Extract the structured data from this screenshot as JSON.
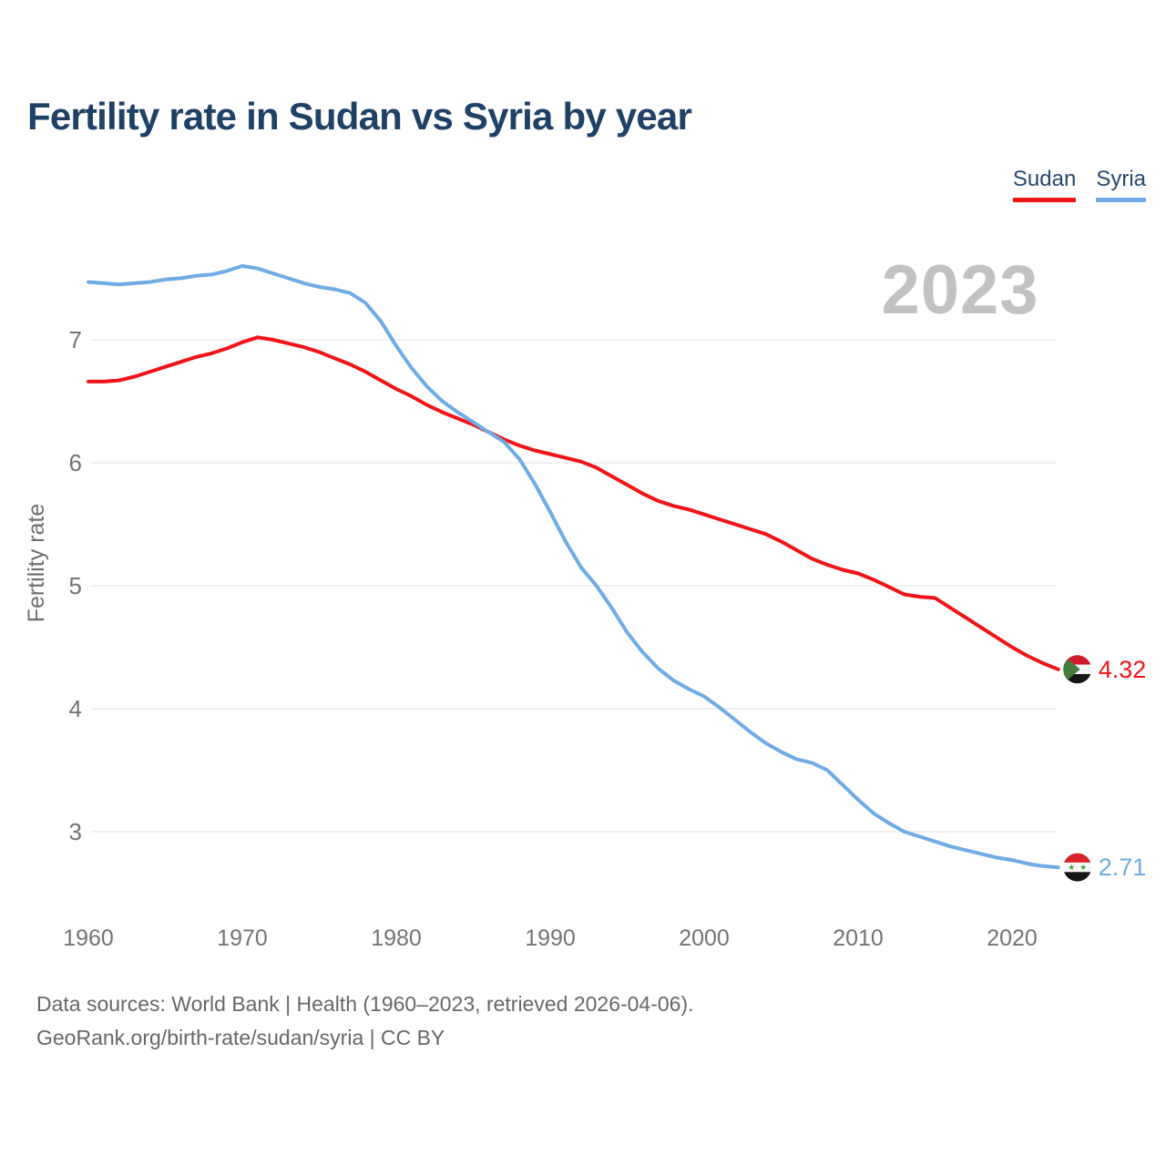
{
  "header": {
    "title": "Fertility rate in Sudan vs Syria by year"
  },
  "chart_data": {
    "type": "line",
    "title": "Fertility rate in Sudan vs Syria by year",
    "xlabel": "",
    "ylabel": "Fertility rate",
    "grid": "horizontal",
    "legend_position": "top-right",
    "xlim": [
      1960,
      2023
    ],
    "ylim": [
      2.4,
      7.8
    ],
    "xticks": [
      1960,
      1970,
      1980,
      1990,
      2000,
      2010,
      2020
    ],
    "yticks": [
      7,
      6,
      5,
      4,
      3
    ],
    "year_watermark": "2023",
    "x": [
      1960,
      1961,
      1962,
      1963,
      1964,
      1965,
      1966,
      1967,
      1968,
      1969,
      1970,
      1971,
      1972,
      1973,
      1974,
      1975,
      1976,
      1977,
      1978,
      1979,
      1980,
      1981,
      1982,
      1983,
      1984,
      1985,
      1986,
      1987,
      1988,
      1989,
      1990,
      1991,
      1992,
      1993,
      1994,
      1995,
      1996,
      1997,
      1998,
      1999,
      2000,
      2001,
      2002,
      2003,
      2004,
      2005,
      2006,
      2007,
      2008,
      2009,
      2010,
      2011,
      2012,
      2013,
      2014,
      2015,
      2016,
      2017,
      2018,
      2019,
      2020,
      2021,
      2022,
      2023
    ],
    "series": [
      {
        "name": "Sudan",
        "color": "#f01418",
        "end_label": "4.32",
        "values": [
          6.66,
          6.66,
          6.67,
          6.7,
          6.74,
          6.78,
          6.82,
          6.86,
          6.89,
          6.93,
          6.98,
          7.02,
          7.0,
          6.97,
          6.94,
          6.9,
          6.85,
          6.8,
          6.74,
          6.67,
          6.6,
          6.54,
          6.47,
          6.41,
          6.36,
          6.31,
          6.25,
          6.19,
          6.14,
          6.1,
          6.07,
          6.04,
          6.01,
          5.96,
          5.89,
          5.82,
          5.75,
          5.69,
          5.65,
          5.62,
          5.58,
          5.54,
          5.5,
          5.46,
          5.42,
          5.36,
          5.29,
          5.22,
          5.17,
          5.13,
          5.1,
          5.05,
          4.99,
          4.93,
          4.91,
          4.9,
          4.82,
          4.74,
          4.66,
          4.58,
          4.5,
          4.43,
          4.37,
          4.32
        ]
      },
      {
        "name": "Syria",
        "color": "#6fabe4",
        "end_label": "2.71",
        "values": [
          7.47,
          7.46,
          7.45,
          7.46,
          7.47,
          7.49,
          7.5,
          7.52,
          7.53,
          7.56,
          7.6,
          7.58,
          7.54,
          7.5,
          7.46,
          7.43,
          7.41,
          7.38,
          7.3,
          7.15,
          6.95,
          6.77,
          6.62,
          6.5,
          6.41,
          6.33,
          6.25,
          6.17,
          6.03,
          5.83,
          5.6,
          5.36,
          5.15,
          5.0,
          4.82,
          4.62,
          4.46,
          4.33,
          4.23,
          4.16,
          4.1,
          4.01,
          3.91,
          3.81,
          3.72,
          3.65,
          3.59,
          3.56,
          3.5,
          3.38,
          3.26,
          3.15,
          3.07,
          3.0,
          2.96,
          2.92,
          2.88,
          2.85,
          2.82,
          2.79,
          2.77,
          2.74,
          2.72,
          2.71
        ]
      }
    ]
  },
  "icons": {
    "sudan_flag": {
      "red": "#cf1b2a",
      "white": "#f5f5f5",
      "black": "#151515",
      "green": "#467c3c"
    },
    "syria_flag": {
      "red": "#d8232a",
      "white": "#f5f5f5",
      "black": "#151515",
      "star_green": "#3fa040"
    }
  },
  "footer": {
    "line1": "Data sources: World Bank | Health (1960–2023, retrieved 2026-04-06).",
    "line2": "GeoRank.org/birth-rate/sudan/syria | CC BY"
  }
}
